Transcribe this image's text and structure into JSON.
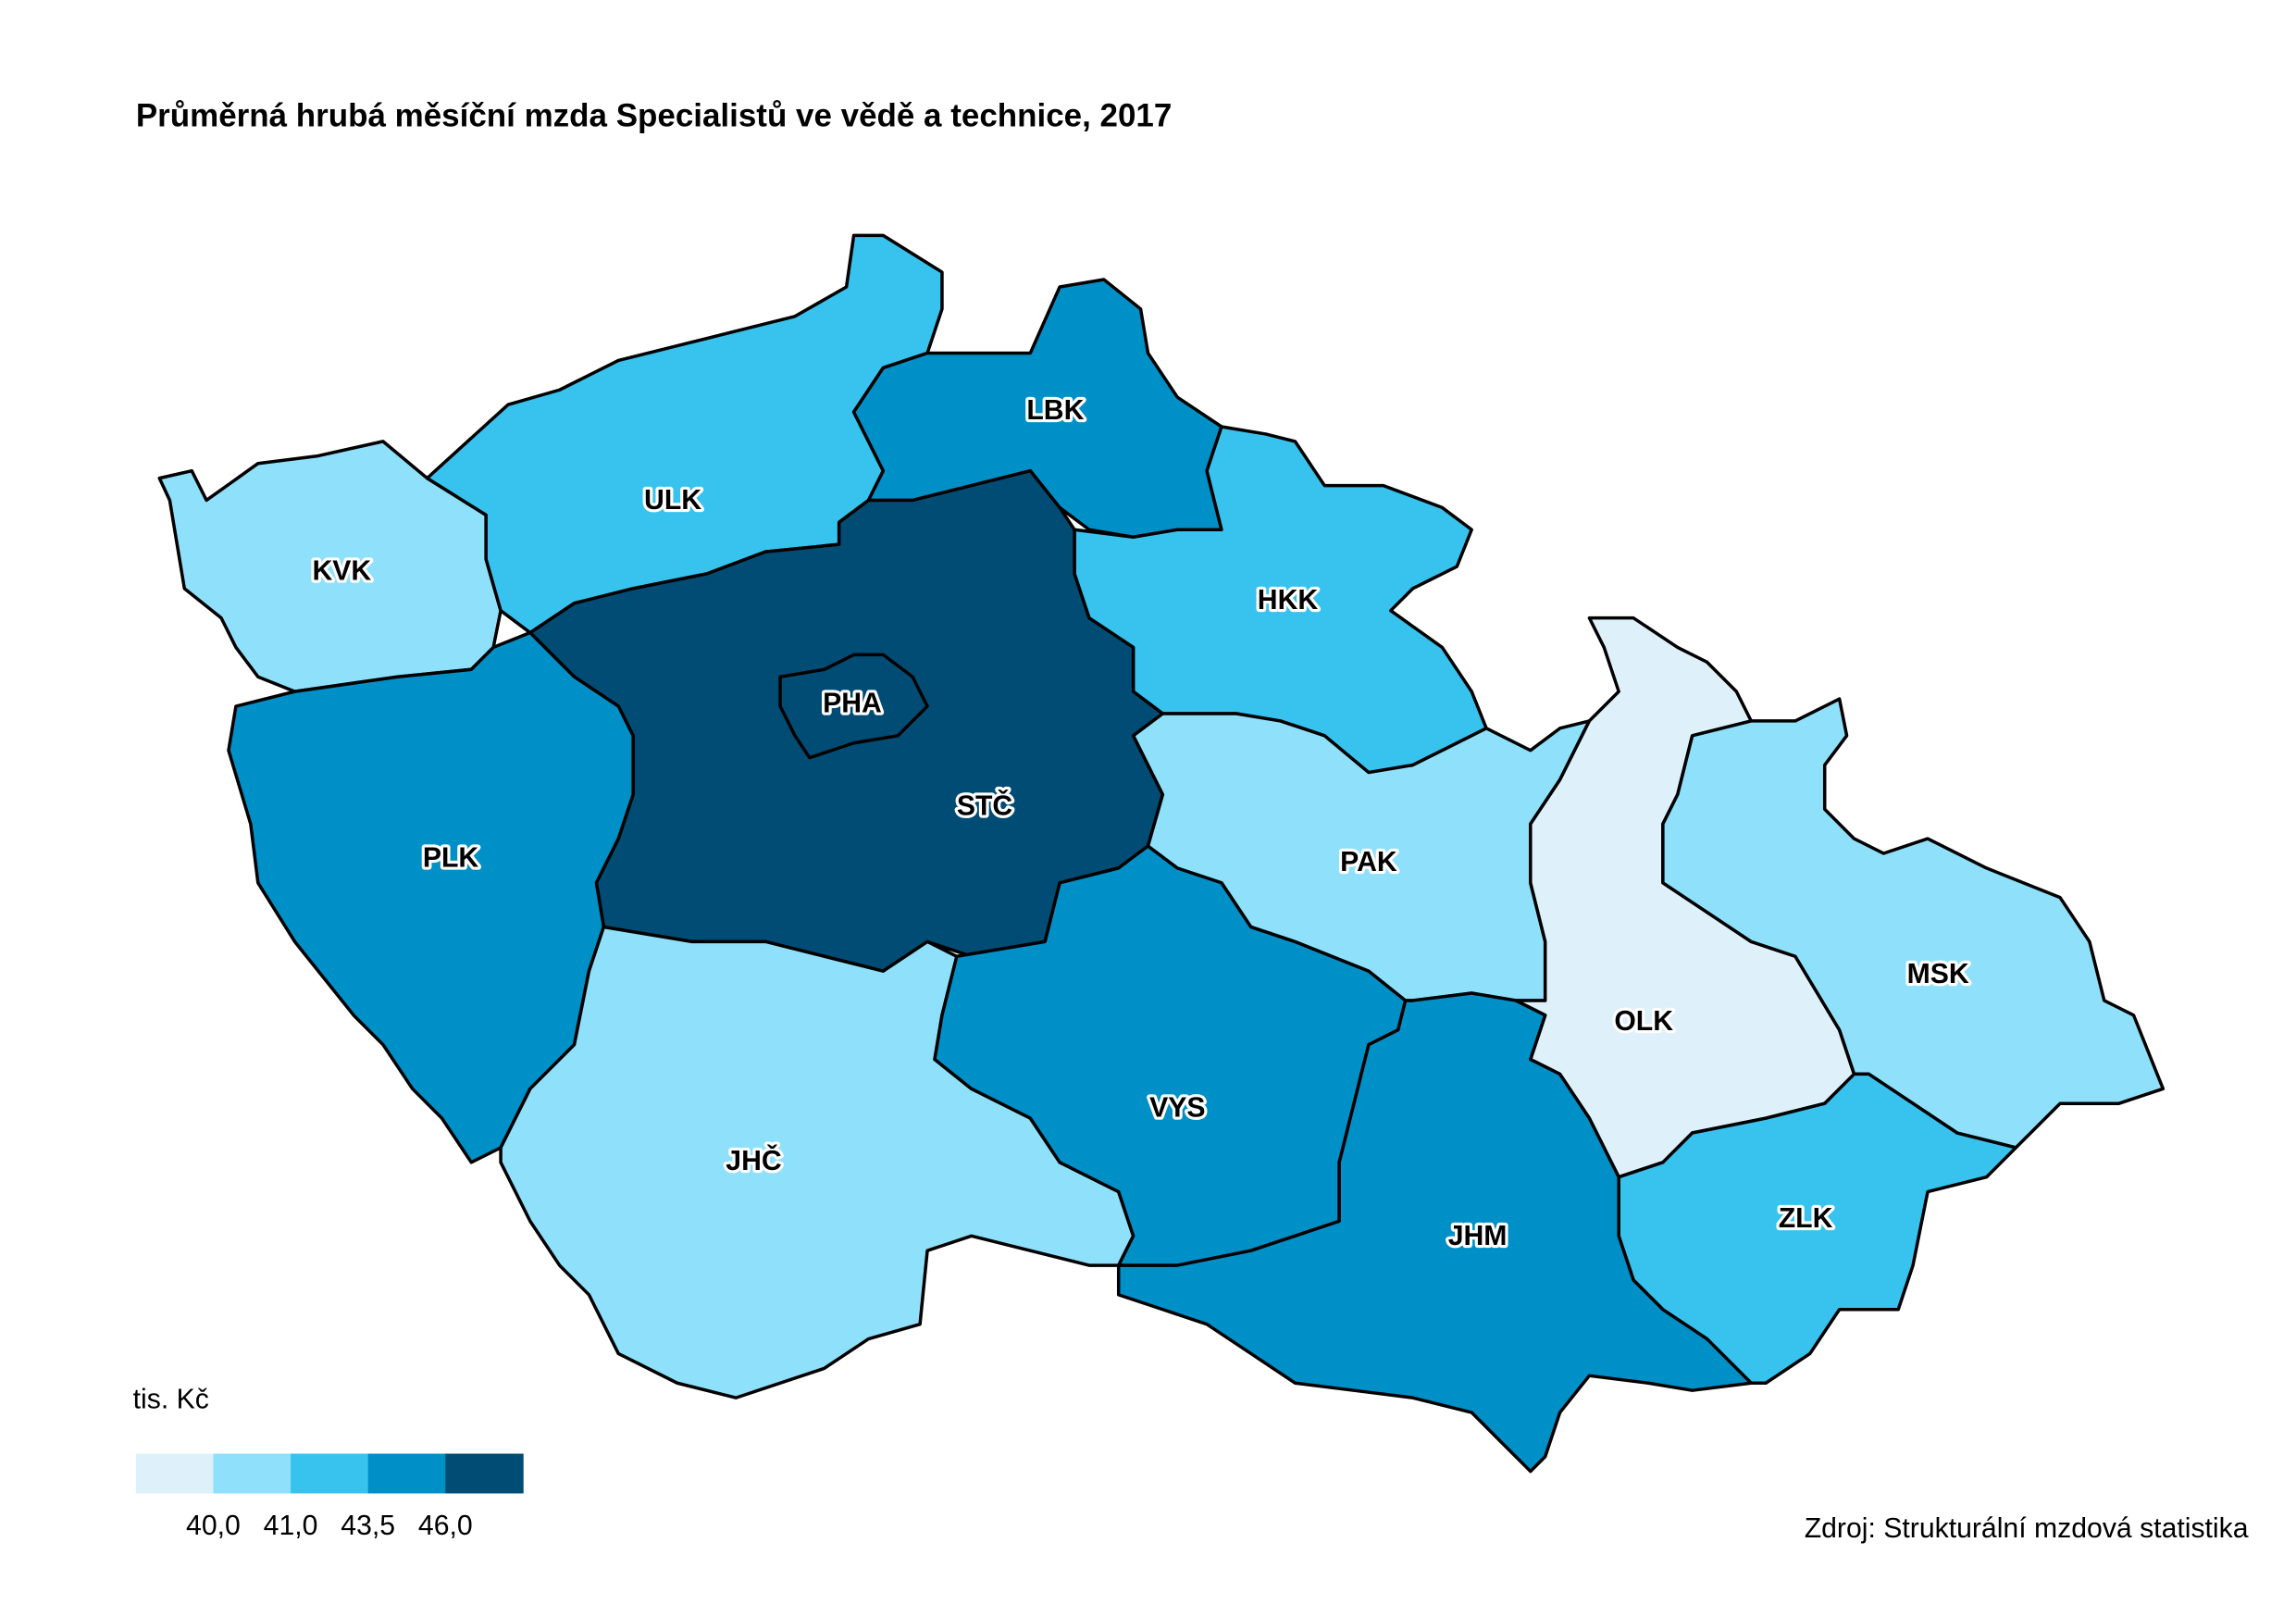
{
  "map": {
    "title": "Průměrná hrubá měsíční mzda Specialistů ve vědě a technice, 2017",
    "regions": [
      {
        "label": "KVK",
        "color": "#8fe0fb"
      },
      {
        "label": "ULK",
        "color": "#38c3ef"
      },
      {
        "label": "LBK",
        "color": "#0090c8"
      },
      {
        "label": "HKK",
        "color": "#38c3ef"
      },
      {
        "label": "STČ",
        "color": "#004c74"
      },
      {
        "label": "PHA",
        "color": "#004c74"
      },
      {
        "label": "PLK",
        "color": "#0090c8"
      },
      {
        "label": "JHČ",
        "color": "#8fe0fb"
      },
      {
        "label": "VYS",
        "color": "#0090c8"
      },
      {
        "label": "PAK",
        "color": "#8fe0fb"
      },
      {
        "label": "OLK",
        "color": "#def1fb"
      },
      {
        "label": "MSK",
        "color": "#8fe0fb"
      },
      {
        "label": "ZLK",
        "color": "#38c3ef"
      },
      {
        "label": "JHM",
        "color": "#0090c8"
      }
    ],
    "legend": {
      "unit": "tis. Kč",
      "colors": [
        "#def1fb",
        "#8fe0fb",
        "#38c3ef",
        "#0090c8",
        "#004c74"
      ],
      "ticks": [
        {
          "value": 40,
          "label": "40,0"
        },
        {
          "value": 41,
          "label": "41,0"
        },
        {
          "value": 43.5,
          "label": "43,5"
        },
        {
          "value": 46,
          "label": "46,0"
        }
      ]
    },
    "source": "Zdroj: Strukturální mzdová statistika"
  }
}
